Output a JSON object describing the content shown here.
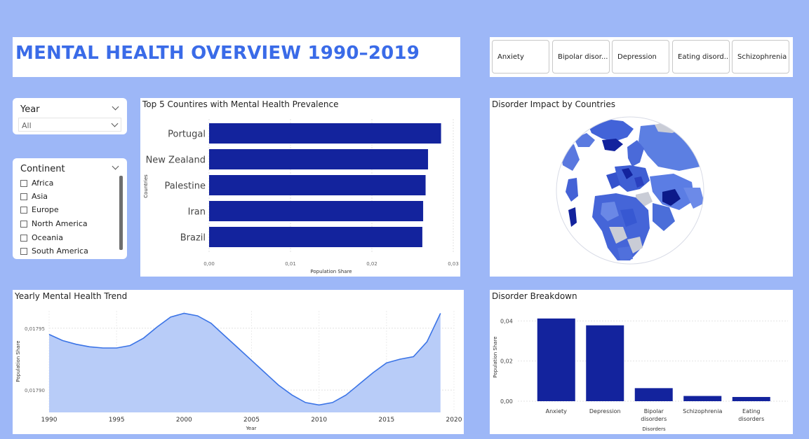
{
  "header": {
    "title": "MENTAL HEALTH OVERVIEW 1990–2019"
  },
  "disorder_slicer": {
    "buttons": [
      "Anxiety",
      "Bipolar disor...",
      "Depression",
      "Eating disord...",
      "Schizophrenia"
    ]
  },
  "year_slicer": {
    "label": "Year",
    "selected": "All"
  },
  "continent_slicer": {
    "label": "Continent",
    "options": [
      "Africa",
      "Asia",
      "Europe",
      "North America",
      "Oceania",
      "South America"
    ]
  },
  "top5": {
    "title": "Top 5 Countires with Mental Health Prevalence"
  },
  "impact": {
    "title": "Disorder Impact by Countries"
  },
  "trend": {
    "title": "Yearly Mental Health Trend"
  },
  "breakdown": {
    "title": "Disorder Breakdown"
  },
  "colors": {
    "bar": "#13239d",
    "line": "#3b74e6",
    "area": "#b8ccf8",
    "accent": "#3a6be8",
    "background": "#9db7f7"
  },
  "chart_data": [
    {
      "type": "bar",
      "orientation": "horizontal",
      "title": "Top 5 Countires with Mental Health Prevalence",
      "categories": [
        "Portugal",
        "New Zealand",
        "Palestine",
        "Iran",
        "Brazil"
      ],
      "values": [
        0.0285,
        0.0269,
        0.0266,
        0.0263,
        0.0262
      ],
      "xlabel": "Population Share",
      "ylabel": "Countries",
      "xlim": [
        0,
        0.03
      ],
      "xticks": [
        "0,00",
        "0,01",
        "0,02",
        "0,03"
      ]
    },
    {
      "type": "area",
      "title": "Yearly Mental Health Trend",
      "x": [
        1990,
        1991,
        1992,
        1993,
        1994,
        1995,
        1996,
        1997,
        1998,
        1999,
        2000,
        2001,
        2002,
        2003,
        2004,
        2005,
        2006,
        2007,
        2008,
        2009,
        2010,
        2011,
        2012,
        2013,
        2014,
        2015,
        2016,
        2017,
        2018,
        2019
      ],
      "y": [
        0.017945,
        0.01794,
        0.017937,
        0.017935,
        0.017934,
        0.017934,
        0.017936,
        0.017942,
        0.017951,
        0.017959,
        0.017962,
        0.01796,
        0.017954,
        0.017944,
        0.017934,
        0.017924,
        0.017914,
        0.017904,
        0.017896,
        0.01789,
        0.017888,
        0.01789,
        0.017896,
        0.017905,
        0.017914,
        0.017922,
        0.017925,
        0.017927,
        0.017939,
        0.017962
      ],
      "xlabel": "Year",
      "ylabel": "Population Share",
      "xlim": [
        1990,
        2020
      ],
      "ylim": [
        0.017882,
        0.017964
      ],
      "xticks": [
        "1990",
        "1995",
        "2000",
        "2005",
        "2010",
        "2015",
        "2020"
      ],
      "yticks": [
        {
          "value": 0.01795,
          "label": "0,01795"
        },
        {
          "value": 0.0179,
          "label": "0,01790"
        }
      ]
    },
    {
      "type": "bar",
      "title": "Disorder Breakdown",
      "categories": [
        "Anxiety",
        "Depression",
        "Bipolar disorders",
        "Schizophrenia",
        "Eating disorders"
      ],
      "values": [
        0.0412,
        0.0378,
        0.0065,
        0.0026,
        0.0021
      ],
      "xlabel": "Disorders",
      "ylabel": "Population Share",
      "ylim": [
        0,
        0.045
      ],
      "yticks": [
        {
          "value": 0.0,
          "label": "0,00"
        },
        {
          "value": 0.02,
          "label": "0,02"
        },
        {
          "value": 0.04,
          "label": "0,04"
        }
      ]
    }
  ]
}
